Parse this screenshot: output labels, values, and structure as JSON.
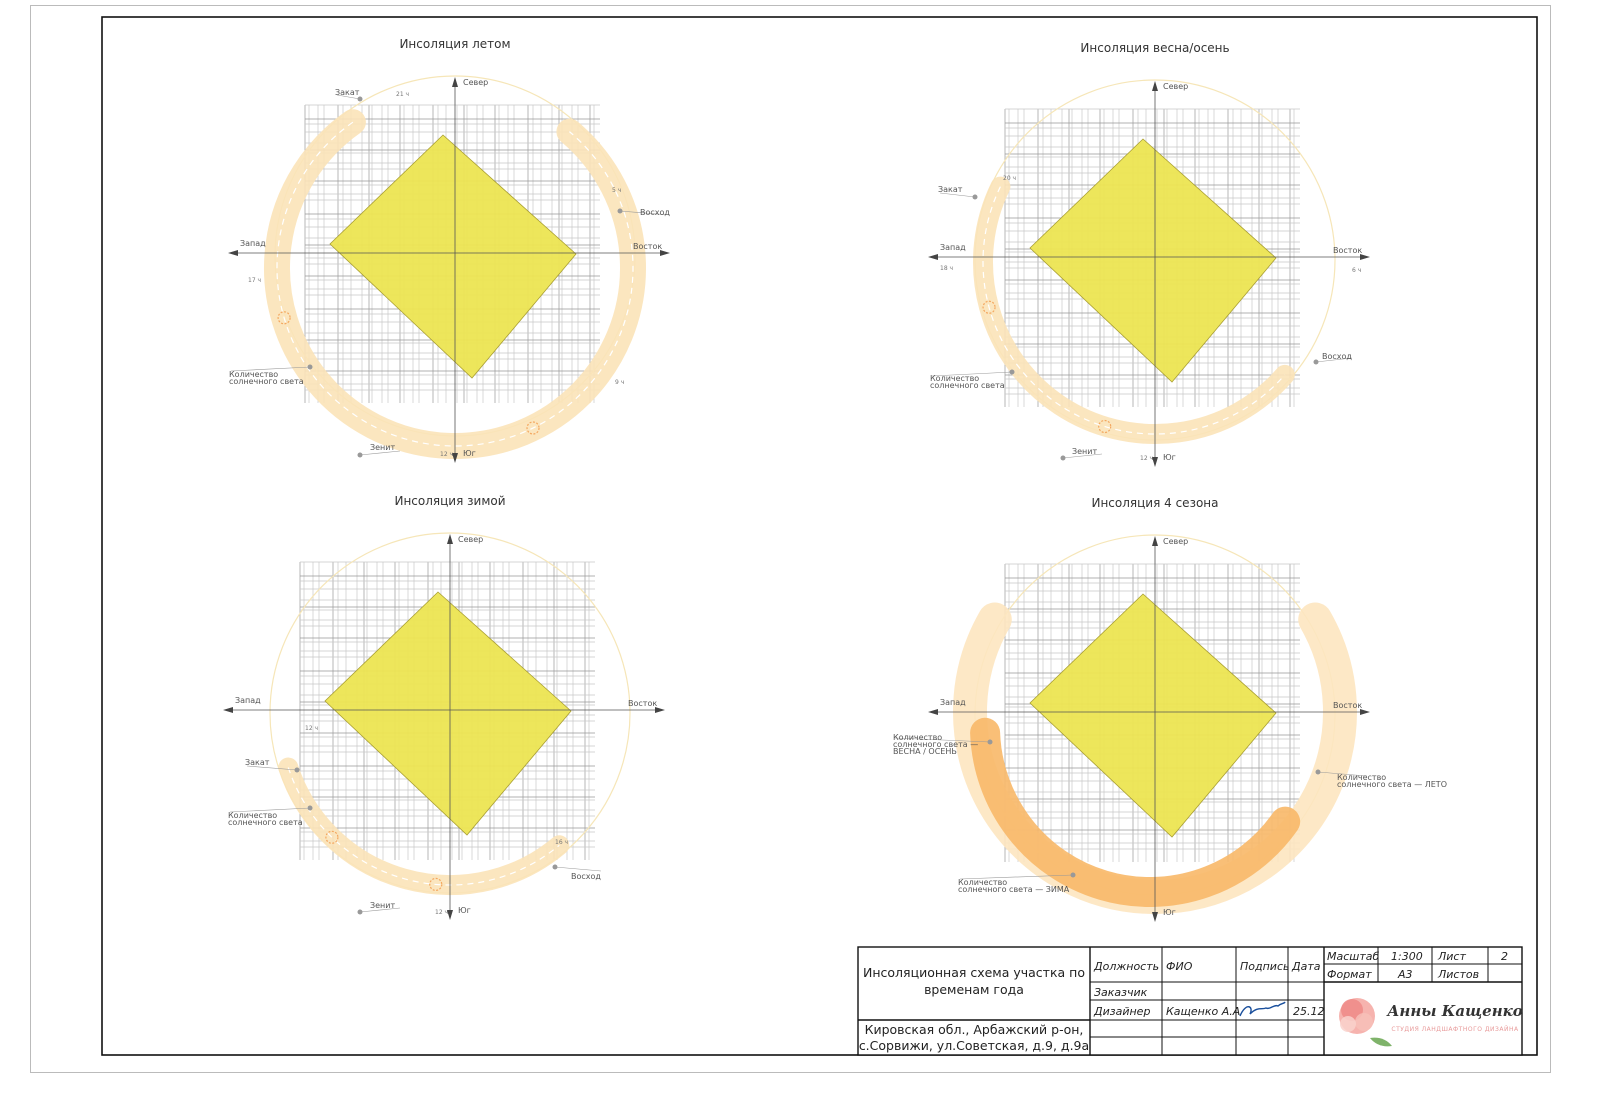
{
  "panels": [
    {
      "title": "Инсоляция летом",
      "compass": [
        "Север",
        "Восток",
        "Юг",
        "Запад"
      ],
      "labels": [
        [
          "Закат"
        ],
        [
          "Восход"
        ],
        [
          "Зенит"
        ],
        [
          "Количество",
          "солнечного света"
        ]
      ],
      "times": [
        "21 ч",
        "5 ч",
        "17 ч",
        "9 ч",
        "12 ч"
      ]
    },
    {
      "title": "Инсоляция весна/осень",
      "compass": [
        "Север",
        "Восток",
        "Юг",
        "Запад"
      ],
      "labels": [
        [
          "Закат"
        ],
        [
          "Восход"
        ],
        [
          "Зенит"
        ],
        [
          "Количество",
          "солнечного света"
        ]
      ],
      "times": [
        "20 ч",
        "18 ч",
        "6 ч",
        "12 ч"
      ]
    },
    {
      "title": "Инсоляция зимой",
      "compass": [
        "Север",
        "Восток",
        "Юг",
        "Запад"
      ],
      "labels": [
        [
          "Закат"
        ],
        [
          "Восход"
        ],
        [
          "Зенит"
        ],
        [
          "Количество",
          "солнечного света"
        ]
      ],
      "times": [
        "12 ч",
        "16 ч",
        "12 ч"
      ]
    },
    {
      "title": "Инсоляция 4 сезона",
      "compass": [
        "Север",
        "Восток",
        "Юг",
        "Запад"
      ],
      "labels": [
        [
          "Количество",
          "солнечного света —",
          "ВЕСНА / ОСЕНЬ"
        ],
        [
          "Количество",
          "солнечного света — ЛЕТО"
        ],
        [
          "Количество",
          "солнечного света — ЗИМА"
        ]
      ],
      "times": []
    }
  ],
  "title_block": {
    "project": [
      "Инсоляционная схема участка по",
      "временам года"
    ],
    "address": [
      "Кировская обл., Арбажский р-он,",
      "с.Сорвижи, ул.Советская, д.9, д.9а"
    ],
    "position": "Должность",
    "name": "ФИО",
    "signature": "Подпись",
    "date": "Дата",
    "scale_label": "Масштаб",
    "scale": "1:300",
    "sheet_label": "Лист",
    "sheet": "2",
    "format_label": "Формат",
    "format": "А3",
    "sheets_label": "Листов",
    "customer": "Заказчик",
    "designer": "Дизайнер",
    "designer_name": "Кащенко А.А",
    "designer_date": "25.12",
    "studio_name": "Анны Кащенко",
    "studio_sub": "СТУДИЯ ЛАНДШАФТНОГО ДИЗАЙНА"
  }
}
